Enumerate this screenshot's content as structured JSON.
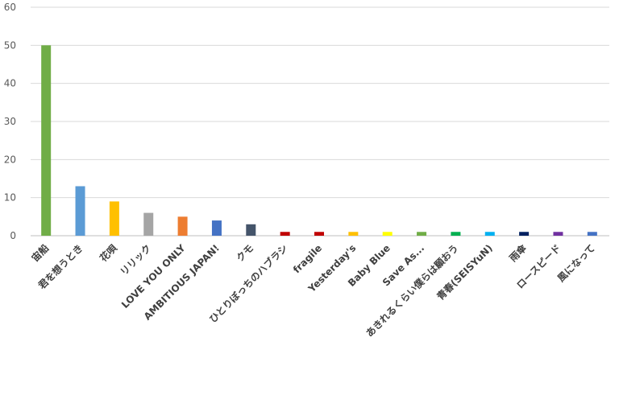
{
  "chart_data": {
    "type": "bar",
    "categories": [
      "宙船",
      "君を想うとき",
      "花唄",
      "リリック",
      "LOVE YOU ONLY",
      "AMBITIOUS JAPAN!",
      "クモ",
      "ひとりぼっちのハブラシ",
      "fragile",
      "Yesterday's",
      "Baby Blue",
      "Save As...",
      "あきれるくらい僕らは願おう",
      "青春(SEISYuN)",
      "雨傘",
      "ロースピード",
      "風になって"
    ],
    "values": [
      50,
      13,
      9,
      6,
      5,
      4,
      3,
      1,
      1,
      1,
      1,
      1,
      1,
      1,
      1,
      1,
      1
    ],
    "colors": [
      "#70ad47",
      "#5b9bd5",
      "#ffc000",
      "#a5a5a5",
      "#ed7d31",
      "#4472c4",
      "#44546a",
      "#c00000",
      "#c00000",
      "#ffc000",
      "#ffff00",
      "#70ad47",
      "#00b050",
      "#00b0f0",
      "#002060",
      "#7030a0",
      "#4472c4"
    ],
    "ylim": [
      0,
      60
    ],
    "yticks": [
      0,
      10,
      20,
      30,
      40,
      50,
      60
    ],
    "grid": true,
    "title": "",
    "xlabel": "",
    "ylabel": ""
  }
}
